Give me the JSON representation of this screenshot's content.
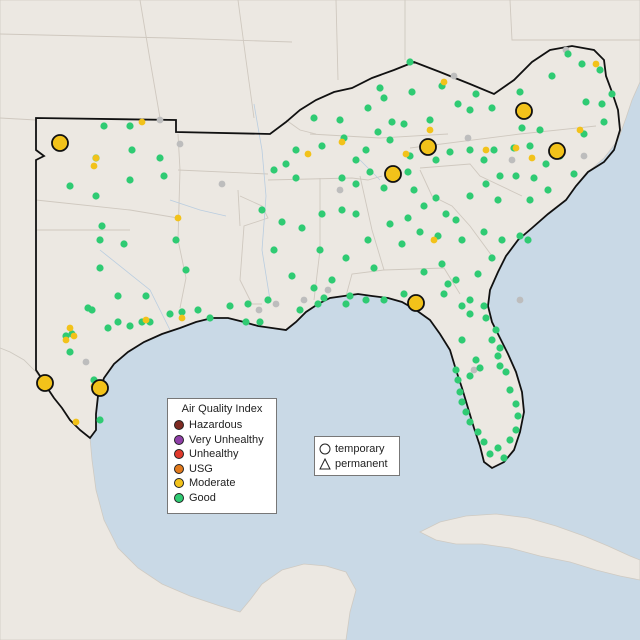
{
  "legend": {
    "title": "Air Quality Index",
    "categories": [
      {
        "label": "Hazardous",
        "color": "#7e2a22"
      },
      {
        "label": "Very Unhealthy",
        "color": "#8f3fa8"
      },
      {
        "label": "Unhealthy",
        "color": "#e0392b"
      },
      {
        "label": "USG",
        "color": "#e27a1c"
      },
      {
        "label": "Moderate",
        "color": "#f2c21a"
      },
      {
        "label": "Good",
        "color": "#2fcb73"
      }
    ]
  },
  "shape_legend": {
    "temporary_label": "temporary",
    "permanent_label": "permanent"
  },
  "colors": {
    "water": "#c9d9e6",
    "land": "#ece8e2",
    "unreporting_site": "#bdbdbd"
  }
}
